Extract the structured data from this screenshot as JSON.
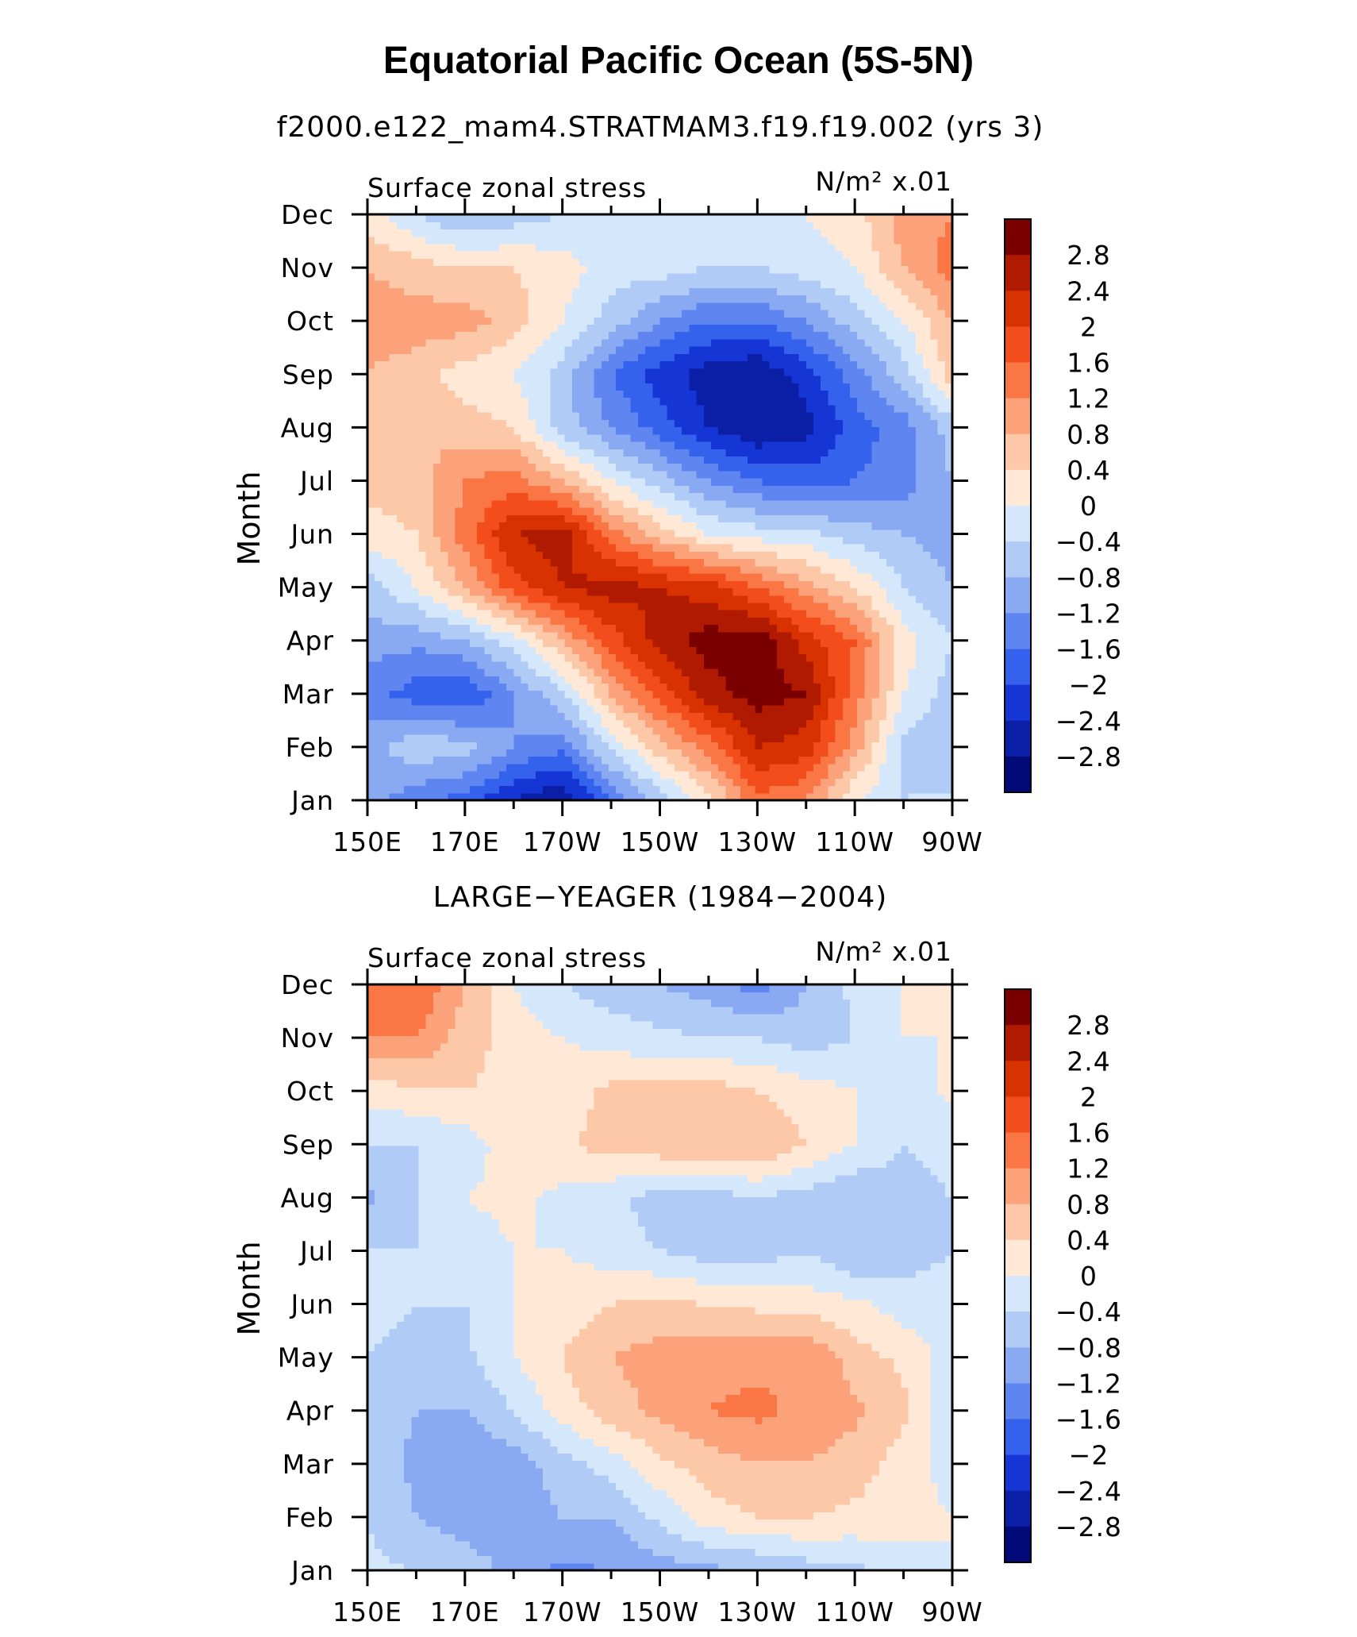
{
  "figure": {
    "title": "Equatorial Pacific Ocean (5S-5N)"
  },
  "colorbar": {
    "tick_labels": [
      "2.8",
      "2.4",
      "2",
      "1.6",
      "1.2",
      "0.8",
      "0.4",
      "0",
      "−0.4",
      "−0.8",
      "−1.2",
      "−1.6",
      "−2",
      "−2.4",
      "−2.8"
    ],
    "levels": [
      2.8,
      2.4,
      2.0,
      1.6,
      1.2,
      0.8,
      0.4,
      0.0,
      -0.4,
      -0.8,
      -1.2,
      -1.6,
      -2.0,
      -2.4,
      -2.8
    ],
    "colors": [
      "#7a0000",
      "#b01a00",
      "#d83200",
      "#f24d1a",
      "#fa7745",
      "#fca27a",
      "#fdc8a8",
      "#ffe8d6",
      "#d4e7fb",
      "#b1cbf7",
      "#8aa9f3",
      "#5f86f0",
      "#3462ec",
      "#1535d5",
      "#0b1fa6",
      "#020a7a"
    ]
  },
  "chart_data": [
    {
      "type": "heatmap",
      "title": "f2000.e122_mam4.STRATMAM3.f19.f19.002 (yrs 3)",
      "left_string": "Surface zonal stress",
      "units": "N/m² x.01",
      "ylabel": "Month",
      "xlabel": "",
      "x_tick_labels": [
        "150E",
        "170E",
        "170W",
        "150W",
        "130W",
        "110W",
        "90W"
      ],
      "y_tick_labels": [
        "Jan",
        "Feb",
        "Mar",
        "Apr",
        "May",
        "Jun",
        "Jul",
        "Aug",
        "Sep",
        "Oct",
        "Nov",
        "Dec"
      ],
      "x_range_deg_east": [
        150,
        270
      ],
      "x_grid": [
        150,
        160,
        170,
        180,
        190,
        200,
        210,
        220,
        230,
        240,
        250,
        260,
        270
      ],
      "values": [
        [
          -1.0,
          -1.5,
          -1.8,
          -2.4,
          -2.8,
          -1.6,
          -0.6,
          0.2,
          1.5,
          1.2,
          0.0,
          -0.4,
          -0.3
        ],
        [
          -1.0,
          -0.5,
          -0.6,
          -1.2,
          -1.5,
          -0.3,
          0.6,
          1.4,
          2.4,
          2.2,
          1.0,
          -0.5,
          -0.8
        ],
        [
          -1.4,
          -1.8,
          -2.0,
          -1.2,
          -0.5,
          0.8,
          1.8,
          2.6,
          3.0,
          2.8,
          1.4,
          0.0,
          -0.6
        ],
        [
          -1.0,
          -1.1,
          -0.8,
          -0.2,
          0.8,
          1.8,
          2.6,
          3.0,
          3.1,
          2.2,
          1.6,
          0.2,
          -0.4
        ],
        [
          -0.6,
          0.0,
          0.8,
          1.8,
          2.4,
          2.6,
          2.4,
          2.2,
          1.6,
          1.0,
          0.4,
          -0.4,
          -0.8
        ],
        [
          0.2,
          0.4,
          1.4,
          2.4,
          2.6,
          1.4,
          0.6,
          0.0,
          -0.2,
          -0.3,
          -0.6,
          -0.8,
          -1.0
        ],
        [
          0.6,
          0.6,
          1.2,
          1.4,
          0.8,
          0.0,
          -0.6,
          -1.2,
          -1.6,
          -1.8,
          -1.6,
          -1.4,
          -0.8
        ],
        [
          0.4,
          0.8,
          0.6,
          0.4,
          -0.6,
          -1.2,
          -1.8,
          -2.4,
          -2.8,
          -2.6,
          -1.8,
          -1.4,
          -0.6
        ],
        [
          0.8,
          0.6,
          0.2,
          0.0,
          -0.6,
          -1.6,
          -2.2,
          -2.6,
          -2.8,
          -2.2,
          -1.4,
          -0.6,
          0.6
        ],
        [
          1.0,
          1.0,
          1.0,
          0.6,
          0.0,
          -0.6,
          -1.2,
          -1.6,
          -1.6,
          -1.2,
          -0.6,
          0.0,
          0.8
        ],
        [
          0.8,
          0.6,
          0.4,
          0.4,
          0.2,
          -0.2,
          -0.2,
          -0.4,
          -0.4,
          -0.2,
          0.0,
          0.8,
          1.4
        ],
        [
          0.2,
          -0.4,
          -0.8,
          -0.6,
          -0.4,
          -0.2,
          -0.2,
          -0.4,
          -0.2,
          0.0,
          0.2,
          1.0,
          1.2
        ]
      ]
    },
    {
      "type": "heatmap",
      "title": "LARGE−YEAGER (1984−2004)",
      "left_string": "Surface zonal stress",
      "units": "N/m² x.01",
      "ylabel": "Month",
      "xlabel": "",
      "x_tick_labels": [
        "150E",
        "170E",
        "170W",
        "150W",
        "130W",
        "110W",
        "90W"
      ],
      "y_tick_labels": [
        "Jan",
        "Feb",
        "Mar",
        "Apr",
        "May",
        "Jun",
        "Jul",
        "Aug",
        "Sep",
        "Oct",
        "Nov",
        "Dec"
      ],
      "x_range_deg_east": [
        150,
        270
      ],
      "x_grid": [
        150,
        160,
        170,
        180,
        190,
        200,
        210,
        220,
        230,
        240,
        250,
        260,
        270
      ],
      "values": [
        [
          -0.3,
          -0.4,
          -0.6,
          -0.9,
          -1.3,
          -1.2,
          -1.0,
          -0.9,
          -0.8,
          -0.6,
          -0.5,
          -0.2,
          0.0
        ],
        [
          -0.4,
          -0.8,
          -1.0,
          -1.0,
          -0.8,
          -0.8,
          -0.3,
          0.2,
          0.4,
          0.4,
          0.3,
          0.2,
          0.0
        ],
        [
          -0.5,
          -0.9,
          -1.2,
          -1.0,
          -0.6,
          -0.2,
          0.3,
          0.6,
          0.8,
          0.8,
          0.6,
          0.2,
          -0.2
        ],
        [
          -0.6,
          -0.8,
          -0.8,
          -0.4,
          0.2,
          0.6,
          0.9,
          1.2,
          1.3,
          1.1,
          0.9,
          0.5,
          -0.4
        ],
        [
          -0.4,
          -0.6,
          -0.5,
          0.0,
          0.4,
          0.8,
          1.0,
          1.1,
          1.1,
          1.2,
          0.6,
          0.3,
          -0.2
        ],
        [
          -0.2,
          -0.4,
          -0.4,
          0.0,
          0.2,
          0.4,
          0.5,
          0.4,
          0.3,
          0.2,
          0.1,
          -0.2,
          -0.2
        ],
        [
          -0.4,
          -0.4,
          -0.2,
          0.0,
          0.0,
          -0.2,
          -0.4,
          -0.6,
          -0.6,
          -0.4,
          -0.8,
          -0.6,
          -0.4
        ],
        [
          -0.9,
          -0.4,
          0.0,
          0.1,
          -0.1,
          -0.3,
          -0.6,
          -0.6,
          -0.4,
          -0.6,
          -0.8,
          -0.6,
          -0.4
        ],
        [
          -0.4,
          -0.4,
          -0.2,
          0.2,
          0.3,
          0.6,
          0.7,
          0.8,
          0.8,
          0.4,
          0.0,
          -0.4,
          -0.2
        ],
        [
          0.2,
          0.3,
          0.4,
          0.3,
          0.2,
          0.5,
          0.6,
          0.6,
          0.4,
          0.2,
          0.0,
          -0.2,
          0.1
        ],
        [
          1.2,
          1.2,
          0.6,
          0.2,
          0.0,
          -0.2,
          -0.3,
          -0.4,
          -0.4,
          -0.6,
          -0.4,
          0.0,
          0.0
        ],
        [
          1.4,
          1.6,
          0.8,
          0.0,
          -0.4,
          -0.6,
          -0.8,
          -1.0,
          -1.4,
          -0.8,
          -0.3,
          0.0,
          0.0
        ]
      ]
    }
  ]
}
